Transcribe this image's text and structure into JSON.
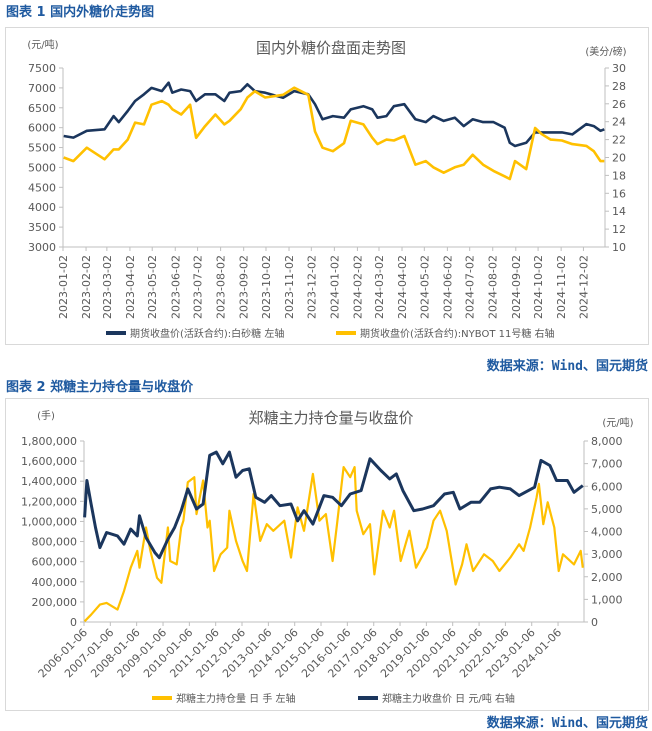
{
  "figure1": {
    "caption": "图表 1 国内外糖价走势图",
    "source": "数据来源：Wind、国元期货"
  },
  "figure2": {
    "caption": "图表 2 郑糖主力持仓量与收盘价",
    "source": "数据来源：Wind、国元期货"
  },
  "chart_data": [
    {
      "type": "line",
      "title": "国内外糖价盘面走势图",
      "ylabel_left": "(元/吨)",
      "ylabel_right": "(美分/磅)",
      "ylim_left": [
        3000,
        7500
      ],
      "yticks_left": [
        "7500",
        "7000",
        "6500",
        "6000",
        "5500",
        "5000",
        "4500",
        "4000",
        "3500",
        "3000"
      ],
      "ylim_right": [
        10,
        30
      ],
      "yticks_right": [
        "30",
        "28",
        "26",
        "24",
        "22",
        "20",
        "18",
        "16",
        "14",
        "12",
        "10"
      ],
      "xlim": [
        "2023-01-02",
        "2024-12-31"
      ],
      "xticks": [
        "2023-01-02",
        "2023-02-02",
        "2023-03-02",
        "2023-04-02",
        "2023-05-02",
        "2023-06-02",
        "2023-07-02",
        "2023-08-02",
        "2023-09-02",
        "2023-10-02",
        "2023-11-02",
        "2023-12-02",
        "2024-01-02",
        "2024-02-02",
        "2024-03-02",
        "2024-04-02",
        "2024-05-02",
        "2024-06-02",
        "2024-07-02",
        "2024-08-02",
        "2024-09-02",
        "2024-10-02",
        "2024-11-02",
        "2024-12-02"
      ],
      "legend_position": "bottom",
      "grid": false,
      "x": [
        "2023-01-03",
        "2023-01-16",
        "2023-02-03",
        "2023-02-27",
        "2023-03-11",
        "2023-03-18",
        "2023-03-30",
        "2023-04-09",
        "2023-04-21",
        "2023-05-01",
        "2023-05-15",
        "2023-05-24",
        "2023-05-29",
        "2023-06-10",
        "2023-06-22",
        "2023-06-30",
        "2023-07-12",
        "2023-07-26",
        "2023-08-07",
        "2023-08-14",
        "2023-08-29",
        "2023-09-07",
        "2023-09-17",
        "2023-10-01",
        "2023-10-25",
        "2023-11-09",
        "2023-11-28",
        "2023-12-07",
        "2023-12-17",
        "2023-12-31",
        "2024-01-15",
        "2024-01-24",
        "2024-02-10",
        "2024-02-22",
        "2024-02-29",
        "2024-03-12",
        "2024-03-22",
        "2024-04-05",
        "2024-04-20",
        "2024-05-04",
        "2024-05-14",
        "2024-05-28",
        "2024-06-12",
        "2024-06-24",
        "2024-07-06",
        "2024-07-20",
        "2024-08-03",
        "2024-08-18",
        "2024-08-25",
        "2024-09-01",
        "2024-09-16",
        "2024-09-28",
        "2024-10-07",
        "2024-10-19",
        "2024-11-03",
        "2024-11-17",
        "2024-12-06",
        "2024-12-16",
        "2024-12-25",
        "2024-12-30"
      ],
      "series": [
        {
          "name": "期货收盘价(活跃合约):白砂糖  左轴",
          "axis": "left",
          "color": "#1b365d",
          "values": [
            5790,
            5750,
            5920,
            5960,
            6290,
            6140,
            6420,
            6670,
            6840,
            7000,
            6920,
            7130,
            6880,
            6960,
            6920,
            6670,
            6840,
            6840,
            6670,
            6880,
            6920,
            7090,
            6920,
            6880,
            6750,
            6920,
            6840,
            6590,
            6210,
            6290,
            6250,
            6460,
            6540,
            6460,
            6250,
            6290,
            6540,
            6590,
            6210,
            6140,
            6290,
            6170,
            6250,
            6040,
            6210,
            6140,
            6140,
            6000,
            5620,
            5540,
            5620,
            5880,
            5880,
            5880,
            5880,
            5830,
            6090,
            6040,
            5920,
            5960
          ]
        },
        {
          "name": "期货收盘价(活跃合约):NYBOT 11号糖  右轴",
          "axis": "right",
          "color": "#ffc000",
          "values": [
            20.0,
            19.6,
            21.1,
            19.8,
            20.9,
            20.9,
            22.0,
            23.9,
            23.7,
            25.9,
            26.3,
            25.9,
            25.4,
            24.8,
            25.9,
            22.2,
            23.5,
            24.8,
            23.7,
            24.1,
            25.4,
            26.7,
            27.4,
            26.7,
            27.0,
            27.8,
            27.0,
            22.9,
            21.1,
            20.7,
            21.6,
            24.1,
            23.7,
            22.2,
            21.5,
            22.0,
            21.9,
            22.4,
            19.2,
            19.6,
            18.9,
            18.3,
            18.9,
            19.2,
            20.3,
            19.2,
            18.5,
            17.9,
            17.6,
            19.6,
            18.7,
            23.3,
            22.6,
            22.0,
            21.9,
            21.5,
            21.3,
            20.7,
            19.6,
            19.6
          ]
        }
      ]
    },
    {
      "type": "line",
      "title": "郑糖主力持仓量与收盘价",
      "ylabel_left": "(手)",
      "ylabel_right": "(元/吨)",
      "ylim_left": [
        0,
        1800000
      ],
      "yticks_left": [
        "1,800,000",
        "1,600,000",
        "1,400,000",
        "1,200,000",
        "1,000,000",
        "800,000",
        "600,000",
        "400,000",
        "200,000",
        "0"
      ],
      "ylim_right": [
        0,
        8000
      ],
      "yticks_right": [
        "8,000",
        "7,000",
        "6,000",
        "5,000",
        "4,000",
        "3,000",
        "2,000",
        "1,000",
        "0"
      ],
      "xlim": [
        "2006-01-06",
        "2024-12-31"
      ],
      "xticks": [
        "2006-01-06",
        "2007-01-06",
        "2008-01-06",
        "2009-01-06",
        "2010-01-06",
        "2011-01-06",
        "2012-01-06",
        "2013-01-06",
        "2014-01-06",
        "2015-01-06",
        "2016-01-06",
        "2017-01-06",
        "2018-01-06",
        "2019-01-06",
        "2020-01-06",
        "2021-01-06",
        "2022-01-06",
        "2023-01-06",
        "2024-01-06"
      ],
      "legend_position": "bottom",
      "grid": false,
      "series": [
        {
          "name": "郑糖主力持仓量 日 手  左轴",
          "axis": "left",
          "color": "#ffc000",
          "x": [
            "2006-01",
            "2006-04",
            "2006-08",
            "2006-11",
            "2007-04",
            "2007-07",
            "2007-10",
            "2008-01",
            "2008-02",
            "2008-05",
            "2008-07",
            "2008-10",
            "2008-12",
            "2009-03",
            "2009-04",
            "2009-07",
            "2009-09",
            "2009-10",
            "2009-12",
            "2010-03",
            "2010-04",
            "2010-07",
            "2010-09",
            "2010-10",
            "2010-12",
            "2011-03",
            "2011-06",
            "2011-07",
            "2011-10",
            "2012-01",
            "2012-03",
            "2012-06",
            "2012-09",
            "2012-12",
            "2013-03",
            "2013-08",
            "2013-11",
            "2014-02",
            "2014-05",
            "2014-09",
            "2014-12",
            "2015-03",
            "2015-06",
            "2015-08",
            "2015-11",
            "2016-02",
            "2016-04",
            "2016-05",
            "2016-08",
            "2016-11",
            "2017-01",
            "2017-05",
            "2017-08",
            "2017-10",
            "2018-01",
            "2018-05",
            "2018-08",
            "2019-01",
            "2019-04",
            "2019-07",
            "2019-10",
            "2020-02",
            "2020-05",
            "2020-07",
            "2020-10",
            "2021-03",
            "2021-07",
            "2021-10",
            "2022-03",
            "2022-07",
            "2022-09",
            "2022-12",
            "2023-03",
            "2023-04",
            "2023-06",
            "2023-08",
            "2023-11",
            "2024-01",
            "2024-03",
            "2024-08",
            "2024-11",
            "2024-12"
          ],
          "values": [
            7000,
            73000,
            173000,
            190000,
            123000,
            307000,
            540000,
            707000,
            540000,
            940000,
            707000,
            440000,
            390000,
            940000,
            607000,
            573000,
            940000,
            1007000,
            1390000,
            1440000,
            1073000,
            1407000,
            940000,
            1007000,
            507000,
            673000,
            740000,
            1107000,
            807000,
            607000,
            507000,
            1273000,
            807000,
            973000,
            907000,
            1007000,
            640000,
            1140000,
            907000,
            1473000,
            1007000,
            1073000,
            607000,
            973000,
            1540000,
            1440000,
            1540000,
            1107000,
            873000,
            973000,
            473000,
            1107000,
            940000,
            1107000,
            607000,
            907000,
            540000,
            740000,
            1007000,
            1107000,
            907000,
            373000,
            573000,
            773000,
            507000,
            673000,
            607000,
            507000,
            640000,
            773000,
            707000,
            940000,
            1240000,
            1373000,
            973000,
            1190000,
            940000,
            507000,
            673000,
            573000,
            707000,
            540000
          ]
        },
        {
          "name": "郑糖主力收盘价 日 元/吨  右轴",
          "axis": "right",
          "color": "#1b365d",
          "x": [
            "2006-01",
            "2006-02",
            "2006-04",
            "2006-06",
            "2006-08",
            "2006-11",
            "2007-04",
            "2007-07",
            "2007-10",
            "2008-01",
            "2008-02",
            "2008-05",
            "2008-09",
            "2008-11",
            "2009-03",
            "2009-06",
            "2009-09",
            "2009-12",
            "2010-04",
            "2010-07",
            "2010-10",
            "2011-01",
            "2011-04",
            "2011-07",
            "2011-10",
            "2012-01",
            "2012-04",
            "2012-07",
            "2012-11",
            "2013-02",
            "2013-06",
            "2013-11",
            "2014-02",
            "2014-05",
            "2014-09",
            "2015-02",
            "2015-06",
            "2015-10",
            "2016-02",
            "2016-07",
            "2016-11",
            "2017-04",
            "2017-08",
            "2017-11",
            "2018-02",
            "2018-07",
            "2018-11",
            "2019-04",
            "2019-09",
            "2020-01",
            "2020-04",
            "2020-09",
            "2021-01",
            "2021-06",
            "2021-10",
            "2022-03",
            "2022-07",
            "2023-02",
            "2023-05",
            "2023-09",
            "2023-12",
            "2024-05",
            "2024-08",
            "2024-12"
          ],
          "values": [
            4622,
            6252,
            5215,
            4178,
            3289,
            3956,
            3807,
            3437,
            4104,
            3807,
            4696,
            3733,
            3067,
            2844,
            3659,
            4178,
            4919,
            5881,
            4993,
            5215,
            7363,
            7511,
            6993,
            7511,
            6400,
            6696,
            6770,
            5511,
            5289,
            5585,
            5141,
            5215,
            4474,
            4919,
            4326,
            5585,
            5511,
            5141,
            5659,
            5807,
            7215,
            6696,
            6326,
            6548,
            5807,
            4919,
            4993,
            5141,
            5659,
            5733,
            4993,
            5289,
            5289,
            5881,
            5956,
            5881,
            5585,
            5956,
            7141,
            6919,
            6252,
            6252,
            5733,
            6030
          ]
        }
      ]
    }
  ]
}
